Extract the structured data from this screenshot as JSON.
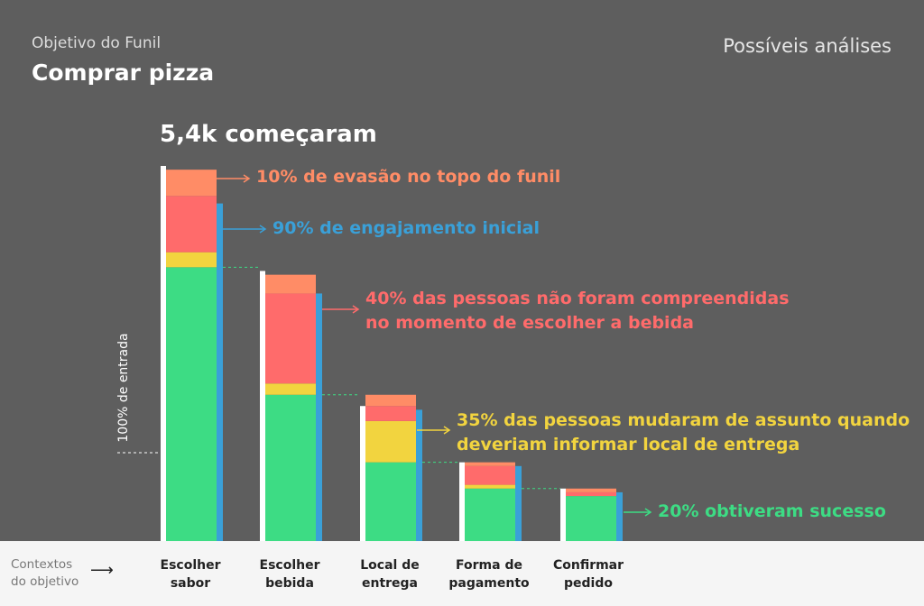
{
  "header": {
    "subtitle": "Objetivo do Funil",
    "title": "Comprar pizza",
    "right_title": "Possíveis análises"
  },
  "chart_header": "5,4k começaram",
  "y_axis_label": "100% de entrada",
  "footer": {
    "label_line1": "Contextos",
    "label_line2": "do objetivo",
    "arrow": "⟶"
  },
  "colors": {
    "background": "#5e5e5e",
    "white_bar": "#ffffff",
    "success_green": "#3ddc84",
    "retry_yellow": "#f2d43f",
    "misunderstood_red": "#ff6b6b",
    "dropout_orange": "#ff8c66",
    "engagement_blue": "#3aa0d8"
  },
  "annotations": [
    {
      "text": "10% de evasão no topo do funil",
      "color": "#ff8c66"
    },
    {
      "text": "90% de engajamento inicial",
      "color": "#3aa0d8"
    },
    {
      "line1": "40% das pessoas não foram compreendidas",
      "line2": "no momento de escolher a bebida",
      "color": "#ff6b6b"
    },
    {
      "line1": "35% das pessoas mudaram de assunto quando",
      "line2": "deveriam informar local de entrega",
      "color": "#f2d43f"
    },
    {
      "text": "20% obtiveram sucesso",
      "color": "#3ddc84"
    }
  ],
  "chart_data": {
    "type": "bar",
    "stacked": true,
    "title": "5,4k começaram",
    "ylabel": "100% de entrada",
    "categories": [
      "Escolher sabor",
      "Escolher bebida",
      "Local de entrega",
      "Forma de pagamento",
      "Confirmar pedido"
    ],
    "category_labels": [
      "Escolher\nsabor",
      "Escolher\nbebida",
      "Local de\nentrega",
      "Forma de\npagamento",
      "Confirmar\npedido"
    ],
    "ylim": [
      0,
      100
    ],
    "total": [
      100,
      72,
      36,
      21,
      14
    ],
    "engaged": [
      90,
      66,
      35,
      20,
      13
    ],
    "series": [
      {
        "color": "#3ddc84",
        "values": [
          73,
          39,
          21,
          14,
          12
        ]
      },
      {
        "color": "#f2d43f",
        "values": [
          4,
          3,
          11,
          1,
          0
        ]
      },
      {
        "color": "#ff6b6b",
        "values": [
          15,
          24,
          4,
          5,
          1
        ]
      },
      {
        "color": "#ff8c66",
        "values": [
          7,
          5,
          3,
          1,
          1
        ]
      }
    ],
    "grid": false
  }
}
